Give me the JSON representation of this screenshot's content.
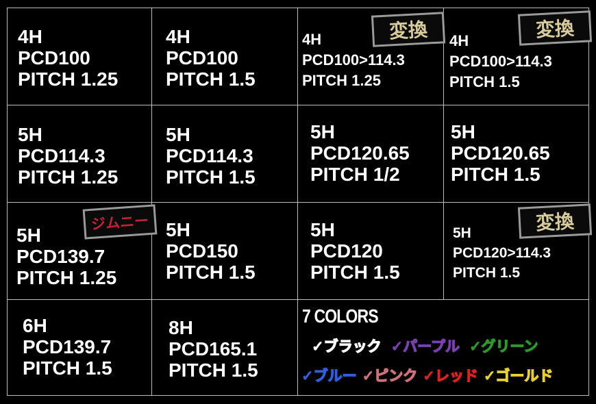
{
  "cells": [
    {
      "lines": [
        "4H",
        "PCD100",
        "PITCH 1.25"
      ]
    },
    {
      "lines": [
        "4H",
        "PCD100",
        "PITCH 1.5"
      ]
    },
    {
      "lines": [
        "4H",
        "PCD100>114.3",
        "PITCH 1.25"
      ],
      "badge": "変換"
    },
    {
      "lines": [
        "4H",
        "PCD100>114.3",
        "PITCH 1.5"
      ],
      "badge": "変換"
    },
    {
      "lines": [
        "5H",
        "PCD114.3",
        "PITCH 1.25"
      ]
    },
    {
      "lines": [
        "5H",
        "PCD114.3",
        "PITCH 1.5"
      ]
    },
    {
      "lines": [
        "5H",
        "PCD120.65",
        "PITCH 1/2"
      ]
    },
    {
      "lines": [
        "5H",
        "PCD120.65",
        "PITCH 1.5"
      ]
    },
    {
      "lines": [
        "5H",
        "PCD139.7",
        "PITCH 1.25"
      ],
      "badge": "ジムニー"
    },
    {
      "lines": [
        "5H",
        "PCD150",
        "PITCH 1.5"
      ]
    },
    {
      "lines": [
        "5H",
        "PCD120",
        "PITCH 1.5"
      ]
    },
    {
      "lines": [
        "5H",
        "PCD120>114.3",
        "PITCH 1.5"
      ],
      "badge": "変換"
    },
    {
      "lines": [
        "6H",
        "PCD139.7",
        "PITCH 1.5"
      ]
    },
    {
      "lines": [
        "8H",
        "PCD165.1",
        "PITCH 1.5"
      ]
    }
  ],
  "colors": {
    "title": "7 COLORS",
    "items": [
      {
        "label": "✓ブラック",
        "color": "#ffffff"
      },
      {
        "label": "✓パープル",
        "color": "#7a3fb0"
      },
      {
        "label": "✓グリーン",
        "color": "#2a9a2a"
      },
      {
        "label": "✓ブルー",
        "color": "#2f5fe0"
      },
      {
        "label": "✓ピンク",
        "color": "#d0707a"
      },
      {
        "label": "✓レッド",
        "color": "#e02020"
      },
      {
        "label": "✓ゴールド",
        "color": "#e8d030"
      }
    ]
  },
  "badge_colors": {
    "conversion": "#d8cc9a",
    "jimny": "#c8203a"
  }
}
